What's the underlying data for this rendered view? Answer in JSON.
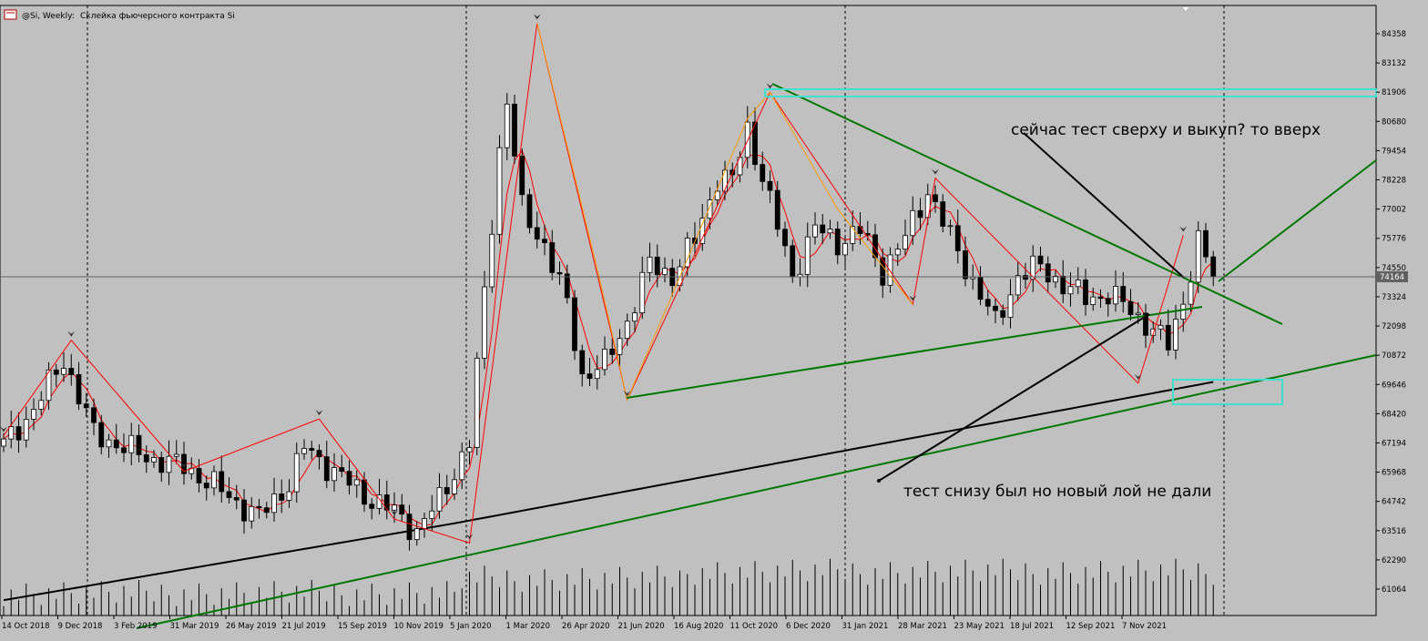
{
  "header": {
    "symbol": "@Si, Weekly:",
    "description": "Склейка фьючерсного контракта Si"
  },
  "colors": {
    "background": "#c0c0c0",
    "grid": "#000000",
    "bull_candle": "#ffffff",
    "bear_candle": "#000000",
    "ma_fast": "#ff0000",
    "ma_slow": "#000000",
    "trendline": "#007700",
    "zigzag": "#ff0000",
    "zigzag_alt": "#ff9900",
    "zone_box": "#40e0d0",
    "annotation_arrow": "#000000"
  },
  "chart_data": {
    "type": "candlestick",
    "timeframe": "Weekly",
    "price_axis_ticks": [
      84358,
      83132,
      81906,
      80680,
      79454,
      78228,
      77002,
      75776,
      74550,
      73324,
      72098,
      70872,
      69646,
      68420,
      67194,
      65968,
      64742,
      63516,
      62290,
      61064
    ],
    "current_price": 74164,
    "ylim": [
      60200,
      85200
    ],
    "time_axis_labels": [
      "14 Oct 2018",
      "9 Dec 2018",
      "3 Feb 2019",
      "31 Mar 2019",
      "26 May 2019",
      "21 Jul 2019",
      "15 Sep 2019",
      "10 Nov 2019",
      "5 Jan 2020",
      "1 Mar 2020",
      "26 Apr 2020",
      "21 Jun 2020",
      "16 Aug 2020",
      "11 Oct 2020",
      "6 Dec 2020",
      "31 Jan 2021",
      "28 Mar 2021",
      "23 May 2021",
      "18 Jul 2021",
      "12 Sep 2021",
      "7 Nov 2021"
    ],
    "close_anchors": [
      {
        "week": 0,
        "close": 67100
      },
      {
        "week": 4,
        "close": 68600
      },
      {
        "week": 8,
        "close": 70700
      },
      {
        "week": 12,
        "close": 67600
      },
      {
        "week": 16,
        "close": 67000
      },
      {
        "week": 20,
        "close": 66500
      },
      {
        "week": 24,
        "close": 66200
      },
      {
        "week": 28,
        "close": 65400
      },
      {
        "week": 32,
        "close": 64500
      },
      {
        "week": 34,
        "close": 64100
      },
      {
        "week": 38,
        "close": 65500
      },
      {
        "week": 40,
        "close": 67000
      },
      {
        "week": 44,
        "close": 66000
      },
      {
        "week": 48,
        "close": 65000
      },
      {
        "week": 52,
        "close": 64300
      },
      {
        "week": 55,
        "close": 63500
      },
      {
        "week": 58,
        "close": 64800
      },
      {
        "week": 62,
        "close": 67200
      },
      {
        "week": 64,
        "close": 73500
      },
      {
        "week": 66,
        "close": 79500
      },
      {
        "week": 67,
        "close": 81500
      },
      {
        "week": 69,
        "close": 77000
      },
      {
        "week": 72,
        "close": 75500
      },
      {
        "week": 75,
        "close": 73000
      },
      {
        "week": 77,
        "close": 70000
      },
      {
        "week": 80,
        "close": 70500
      },
      {
        "week": 83,
        "close": 72300
      },
      {
        "week": 86,
        "close": 74700
      },
      {
        "week": 89,
        "close": 74200
      },
      {
        "week": 92,
        "close": 75700
      },
      {
        "week": 95,
        "close": 78300
      },
      {
        "week": 97,
        "close": 78200
      },
      {
        "week": 99,
        "close": 80400
      },
      {
        "week": 102,
        "close": 77300
      },
      {
        "week": 105,
        "close": 74200
      },
      {
        "week": 108,
        "close": 76200
      },
      {
        "week": 111,
        "close": 75600
      },
      {
        "week": 114,
        "close": 76100
      },
      {
        "week": 117,
        "close": 74400
      },
      {
        "week": 120,
        "close": 75800
      },
      {
        "week": 123,
        "close": 77800
      },
      {
        "week": 126,
        "close": 75800
      },
      {
        "week": 129,
        "close": 74000
      },
      {
        "week": 132,
        "close": 72200
      },
      {
        "week": 135,
        "close": 74200
      },
      {
        "week": 138,
        "close": 74600
      },
      {
        "week": 141,
        "close": 73800
      },
      {
        "week": 144,
        "close": 73300
      },
      {
        "week": 147,
        "close": 73400
      },
      {
        "week": 150,
        "close": 72800
      },
      {
        "week": 153,
        "close": 71900
      },
      {
        "week": 155,
        "close": 71300
      },
      {
        "week": 157,
        "close": 73200
      },
      {
        "week": 159,
        "close": 75600
      },
      {
        "week": 161,
        "close": 74200
      }
    ],
    "annotations": [
      {
        "name": "text-upper",
        "text": "сейчас тест сверху и выкуп? то вверх",
        "week": 151,
        "price": 80200
      },
      {
        "name": "text-lower",
        "text": "тест снизу был  но новый лой не дали",
        "week": 134,
        "price": 64900
      }
    ]
  }
}
